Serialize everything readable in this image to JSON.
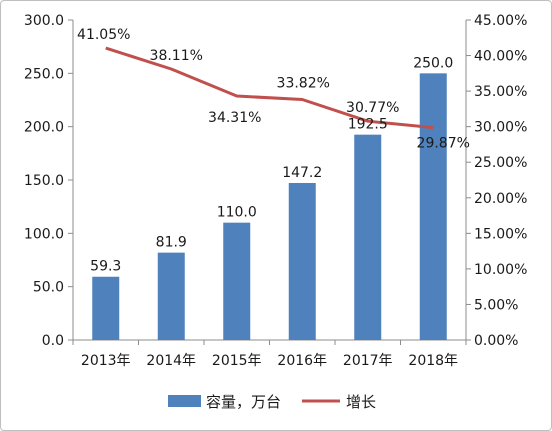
{
  "chart_data": {
    "type": "bar",
    "categories": [
      "2013年",
      "2014年",
      "2015年",
      "2016年",
      "2017年",
      "2018年"
    ],
    "series": [
      {
        "name": "容量，万台",
        "type": "bar",
        "axis": "left",
        "values": [
          59.3,
          81.9,
          110.0,
          147.2,
          192.5,
          250.0
        ],
        "labels": [
          "59.3",
          "81.9",
          "110.0",
          "147.2",
          "192.5",
          "250.0"
        ]
      },
      {
        "name": "增长",
        "type": "line",
        "axis": "right",
        "values": [
          41.05,
          38.11,
          34.31,
          33.82,
          30.77,
          29.87
        ],
        "labels": [
          "41.05%",
          "38.11%",
          "34.31%",
          "33.82%",
          "30.77%",
          "29.87%"
        ]
      }
    ],
    "y_left": {
      "min": 0,
      "max": 300,
      "step": 50,
      "tick_labels": [
        "0.0",
        "50.0",
        "100.0",
        "150.0",
        "200.0",
        "250.0",
        "300.0"
      ]
    },
    "y_right": {
      "min": 0,
      "max": 45,
      "step": 5,
      "unit": "%",
      "tick_labels": [
        "0.00%",
        "5.00%",
        "10.00%",
        "15.00%",
        "20.00%",
        "25.00%",
        "30.00%",
        "35.00%",
        "40.00%",
        "45.00%"
      ]
    },
    "grid": false,
    "legend_position": "bottom",
    "colors": {
      "bar": "#4f81bd",
      "line": "#c0504d",
      "axis": "#8c8c8c"
    }
  }
}
